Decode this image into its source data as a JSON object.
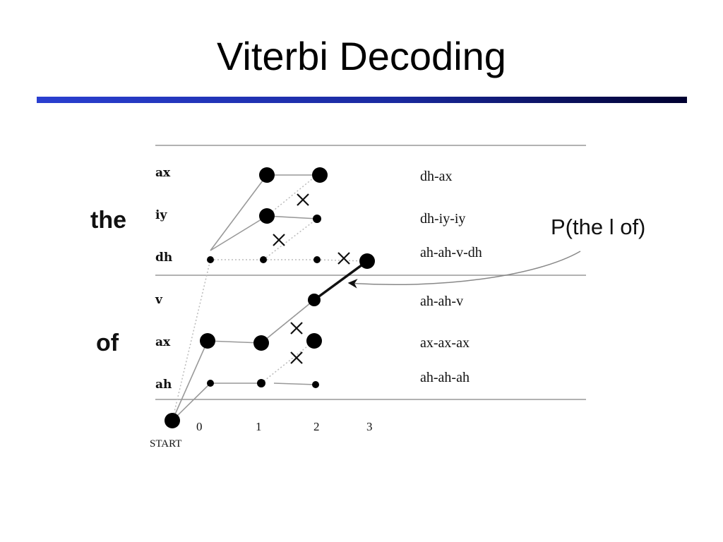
{
  "slide": {
    "title": "Viterbi Decoding"
  },
  "diagram": {
    "words": [
      "the",
      "of"
    ],
    "states": [
      "ax",
      "iy",
      "dh",
      "v",
      "ax",
      "ah"
    ],
    "sequences": [
      "dh-ax",
      "dh-iy-iy",
      "ah-ah-v-dh",
      "ah-ah-v",
      "ax-ax-ax",
      "ah-ah-ah"
    ],
    "time_ticks": [
      "0",
      "1",
      "2",
      "3"
    ],
    "start_label": "START",
    "annotation": "P(the l of)"
  }
}
